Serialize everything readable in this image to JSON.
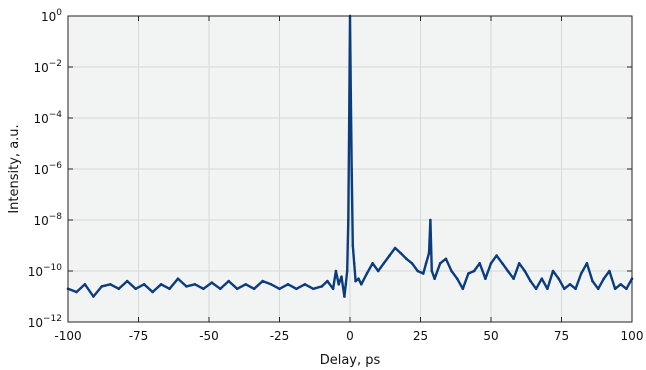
{
  "chart_data": {
    "type": "line",
    "title": "",
    "xlabel": "Delay, ps",
    "ylabel": "Intensity, a.u.",
    "xlim": [
      -100,
      100
    ],
    "ylim_log10": [
      -12,
      0
    ],
    "y_scale": "log",
    "grid": true,
    "legend": "none",
    "colors": {
      "series": "#0b3d7e",
      "plot_bg": "#f2f4f4",
      "grid": "#d6d9d9"
    },
    "x_ticks": [
      -100,
      -75,
      -50,
      -25,
      0,
      25,
      50,
      75,
      100
    ],
    "x_tick_labels": [
      "-100",
      "-75",
      "-50",
      "-25",
      "0",
      "25",
      "50",
      "75",
      "100"
    ],
    "y_ticks_log10": [
      -12,
      -10,
      -8,
      -6,
      -4,
      -2,
      0
    ],
    "y_tick_labels": [
      "10",
      "10",
      "10",
      "10",
      "10",
      "10",
      "10"
    ],
    "y_tick_exponents": [
      "−12",
      "−10",
      "−8",
      "−6",
      "−4",
      "−2",
      "0"
    ],
    "series": [
      {
        "x": [
          -100,
          -97,
          -94,
          -91,
          -88,
          -85,
          -82,
          -79,
          -76,
          -73,
          -70,
          -67,
          -64,
          -61,
          -58,
          -55,
          -52,
          -49,
          -46,
          -43,
          -40,
          -37,
          -34,
          -31,
          -28,
          -25,
          -22,
          -19,
          -16,
          -13,
          -10,
          -8,
          -6,
          -5,
          -4,
          -3,
          -2,
          -1.5,
          -1,
          -0.6,
          -0.3,
          0,
          0.3,
          0.6,
          1,
          1.5,
          2,
          3,
          4,
          6,
          8,
          10,
          12,
          14,
          16,
          18,
          20,
          22,
          24,
          26,
          27,
          28,
          28.5,
          29,
          30,
          32,
          34,
          36,
          38,
          40,
          42,
          44,
          46,
          48,
          50,
          52,
          54,
          56,
          58,
          60,
          62,
          64,
          66,
          68,
          70,
          72,
          74,
          76,
          78,
          80,
          82,
          84,
          86,
          88,
          90,
          92,
          94,
          96,
          98,
          100
        ],
        "y": [
          2e-11,
          1.5e-11,
          3e-11,
          1e-11,
          2.5e-11,
          3e-11,
          2e-11,
          4e-11,
          2e-11,
          3e-11,
          1.5e-11,
          3e-11,
          2e-11,
          5e-11,
          2.5e-11,
          3e-11,
          2e-11,
          3.5e-11,
          2e-11,
          4e-11,
          2e-11,
          3e-11,
          2e-11,
          4e-11,
          3e-11,
          2e-11,
          3e-11,
          2e-11,
          3e-11,
          2e-11,
          2.5e-11,
          4e-11,
          2e-11,
          1e-10,
          3e-11,
          6e-11,
          1e-11,
          3e-11,
          1e-10,
          1e-08,
          0.0001,
          1,
          0.001,
          1e-06,
          1e-09,
          2e-10,
          4e-11,
          5e-11,
          3e-11,
          8e-11,
          2e-10,
          1e-10,
          2e-10,
          4e-10,
          8e-10,
          5e-10,
          3e-10,
          2e-10,
          1e-10,
          8e-11,
          2e-10,
          5e-10,
          1e-08,
          1e-10,
          5e-11,
          2e-10,
          3e-10,
          1e-10,
          5e-11,
          2e-11,
          8e-11,
          1e-10,
          2e-10,
          5e-11,
          2e-10,
          4e-10,
          2e-10,
          1e-10,
          5e-11,
          2e-10,
          1e-10,
          4e-11,
          2e-11,
          5e-11,
          2e-11,
          1e-10,
          5e-11,
          2e-11,
          3e-11,
          2e-11,
          8e-11,
          2e-10,
          4e-11,
          2e-11,
          5e-11,
          1e-10,
          2e-11,
          3e-11,
          2e-11,
          5e-11
        ]
      }
    ]
  }
}
